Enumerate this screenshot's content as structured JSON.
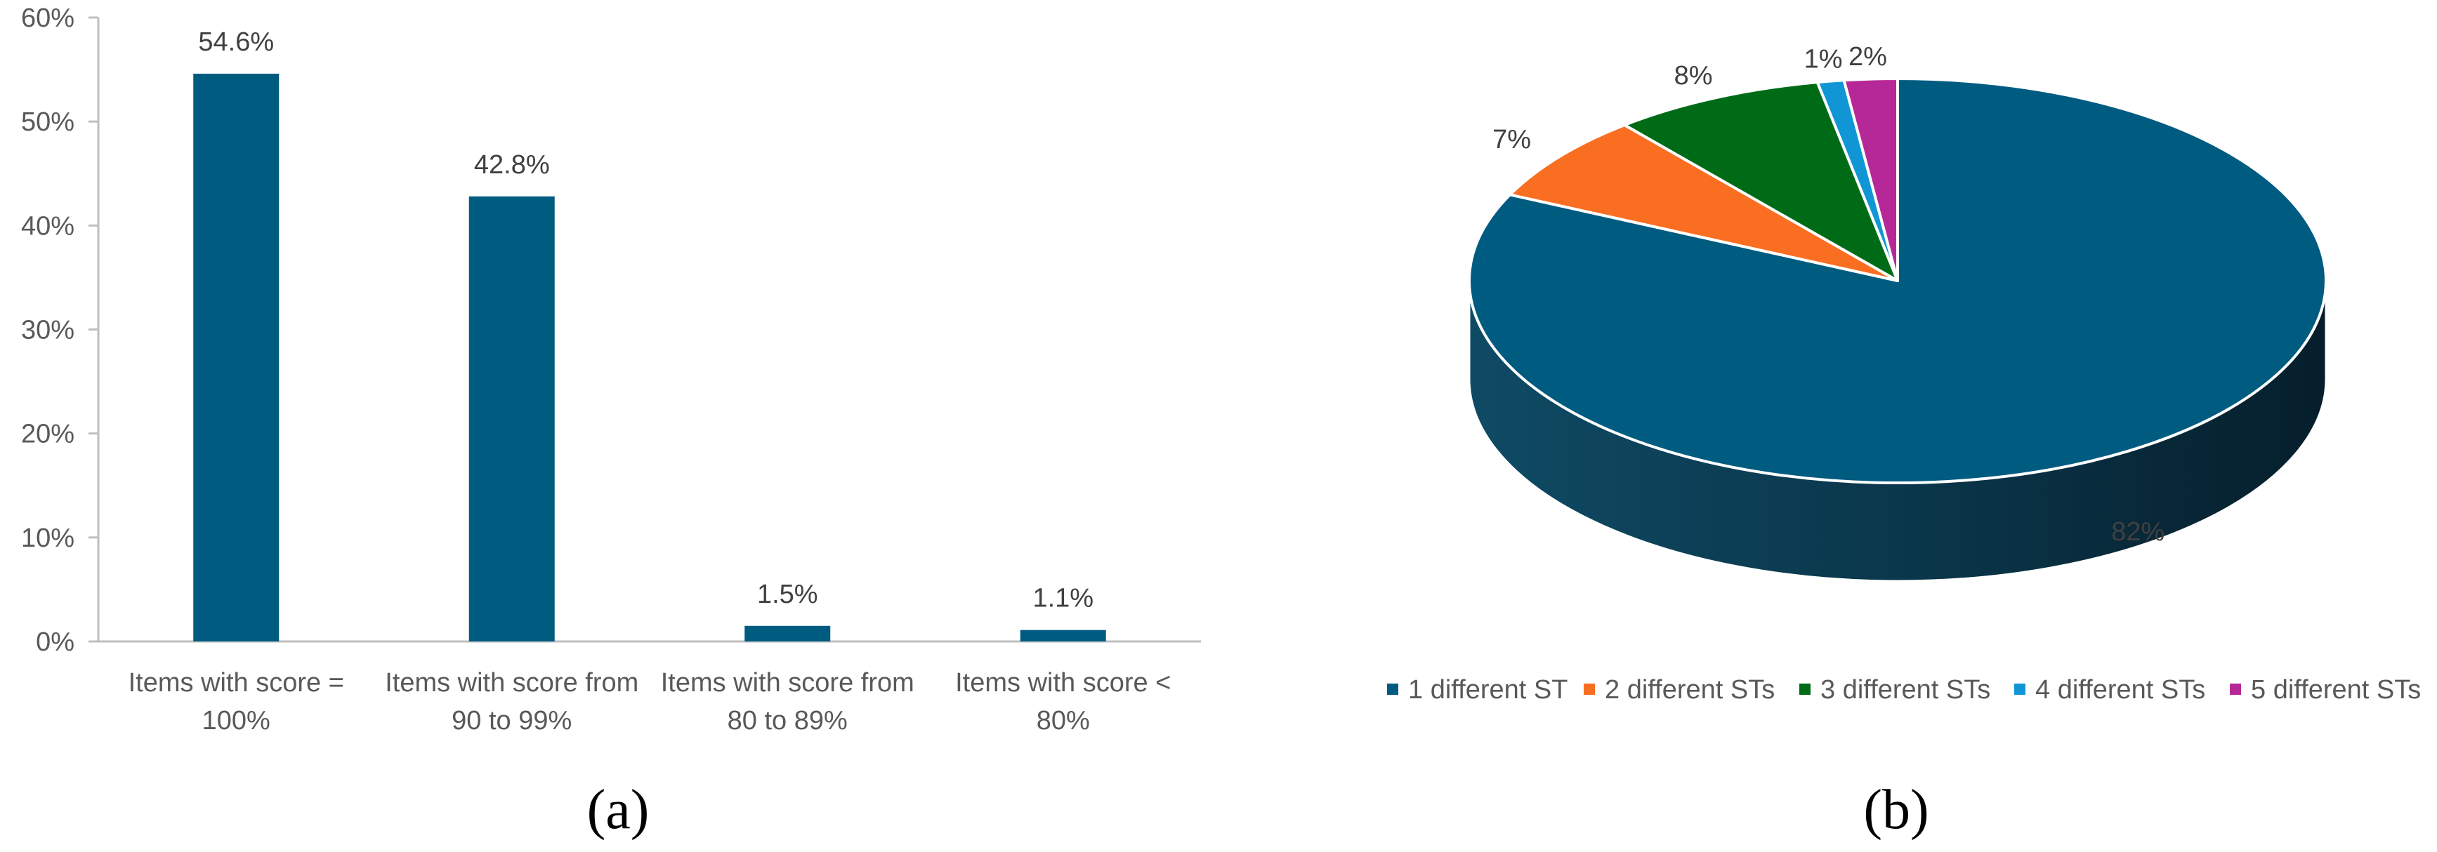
{
  "chart_data": [
    {
      "type": "bar",
      "panel_label": "(a)",
      "categories": [
        [
          "Items with score =",
          "100%"
        ],
        [
          "Items with score from",
          "90 to 99%"
        ],
        [
          "Items with score from",
          "80 to 89%"
        ],
        [
          "Items with score <",
          "80%"
        ]
      ],
      "values": [
        54.6,
        42.8,
        1.5,
        1.1
      ],
      "data_labels": [
        "54.6%",
        "42.8%",
        "1.5%",
        "1.1%"
      ],
      "ylim": [
        0,
        60
      ],
      "yticks": [
        0,
        10,
        20,
        30,
        40,
        50,
        60
      ],
      "ytick_labels": [
        "0%",
        "10%",
        "20%",
        "30%",
        "40%",
        "50%",
        "60%"
      ],
      "grid": false,
      "colors": {
        "bar": "#005b80",
        "axis": "#bfbfbf"
      }
    },
    {
      "type": "pie",
      "style": "3d",
      "panel_label": "(b)",
      "labels": [
        "1 different ST",
        "2 different STs",
        "3 different STs",
        "4 different STs",
        "5 different STs"
      ],
      "values": [
        82,
        7,
        8,
        1,
        2
      ],
      "data_labels": [
        "82%",
        "7%",
        "8%",
        "1%",
        "2%"
      ],
      "colors": [
        "#005b80",
        "#f96e21",
        "#006b17",
        "#1196d5",
        "#b62898"
      ],
      "legend_placement": "bottom"
    }
  ]
}
